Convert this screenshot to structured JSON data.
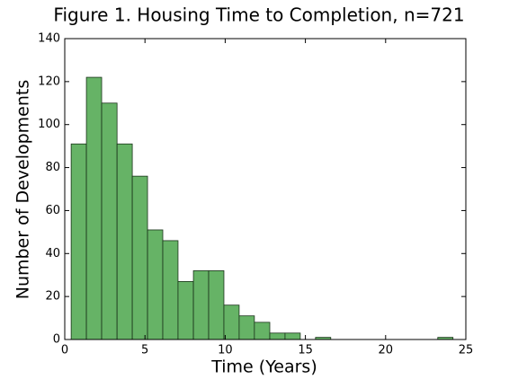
{
  "chart_data": {
    "type": "histogram",
    "title": "Figure 1. Housing Time to Completion, n=721",
    "x_label": "Time (Years)",
    "y_label": "Number of Developments",
    "bins": [
      0.4,
      1.35,
      2.3,
      3.26,
      4.21,
      5.16,
      6.11,
      7.06,
      8.02,
      8.97,
      9.92,
      10.87,
      11.82,
      12.78,
      13.73,
      14.68,
      15.63,
      16.58,
      17.54,
      18.49,
      19.44,
      20.39,
      21.34,
      22.3,
      23.25,
      24.2
    ],
    "values": [
      91,
      122,
      110,
      91,
      76,
      51,
      46,
      27,
      32,
      32,
      16,
      11,
      8,
      3,
      3,
      0,
      1,
      0,
      0,
      0,
      0,
      0,
      0,
      0,
      1
    ],
    "color": "#66b366",
    "xlim": [
      0,
      25
    ],
    "xticks": [
      0,
      5,
      10,
      15,
      20,
      25
    ],
    "ylim": [
      0,
      140
    ],
    "yticks": [
      0,
      20,
      40,
      60,
      80,
      100,
      120,
      140
    ]
  }
}
